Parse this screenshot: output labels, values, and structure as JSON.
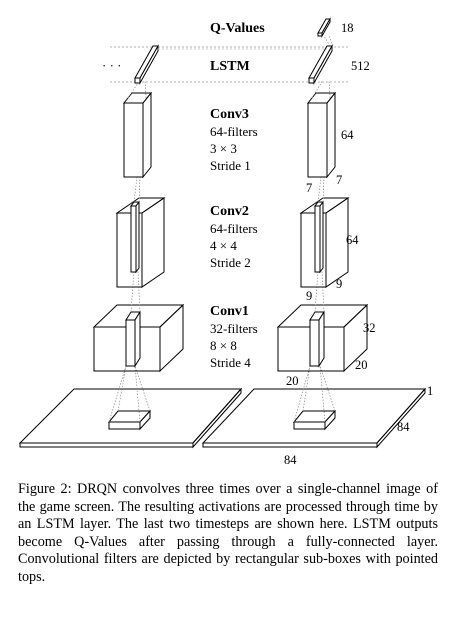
{
  "figure": {
    "qvalues_label": "Q-Values",
    "lstm_label": "LSTM",
    "ellipsis": "· · ·",
    "q_dim": "18",
    "lstm_dim": "512",
    "conv3": {
      "title": "Conv3",
      "filters": "64-filters",
      "size": "3 × 3",
      "stride": "Stride 1",
      "dim_h": "64",
      "dim_w": "7",
      "dim_d": "7"
    },
    "conv2": {
      "title": "Conv2",
      "filters": "64-filters",
      "size": "4 × 4",
      "stride": "Stride 2",
      "dim_h": "64",
      "dim_w": "9",
      "dim_d": "9"
    },
    "conv1": {
      "title": "Conv1",
      "filters": "32-filters",
      "size": "8 × 8",
      "stride": "Stride 4",
      "dim_h": "32",
      "dim_w": "20",
      "dim_d": "20"
    },
    "input": {
      "depth": "1",
      "side_dim": "84",
      "bottom_dim": "84"
    }
  },
  "caption": "Figure 2: DRQN convolves three times over a single-channel image of the game screen. The resulting activations are processed through time by an LSTM layer. The last two timesteps are shown here. LSTM outputs become Q-Values after passing through a fully-connected layer. Convolutional filters are depicted by rectangular sub-boxes with pointed tops."
}
